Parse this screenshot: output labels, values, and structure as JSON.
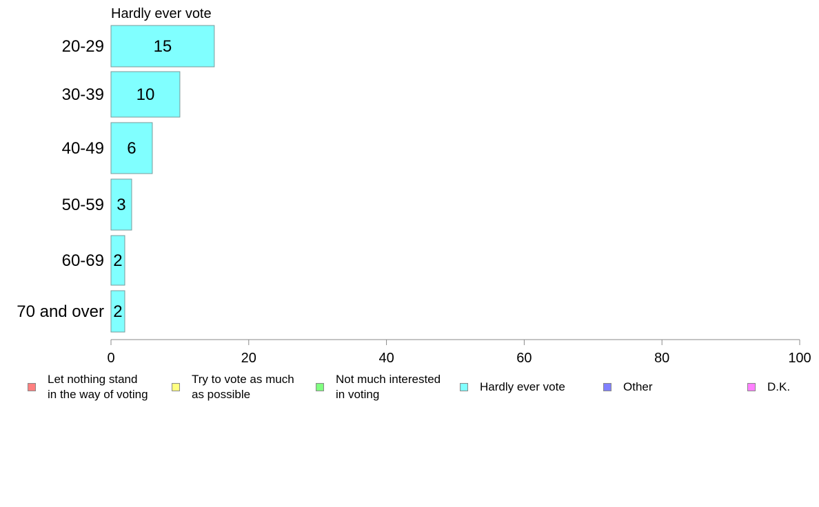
{
  "chart_data": {
    "type": "bar",
    "orientation": "horizontal",
    "title": "Hardly ever vote",
    "categories": [
      "20-29",
      "30-39",
      "40-49",
      "50-59",
      "60-69",
      "70 and over"
    ],
    "values": [
      15,
      10,
      6,
      3,
      2,
      2
    ],
    "data_labels": [
      "15",
      "10",
      "6",
      "3",
      "2",
      "2"
    ],
    "xlim": [
      0,
      100
    ],
    "xticks": [
      0,
      20,
      40,
      60,
      80,
      100
    ],
    "grid": false,
    "bar_color": "#80ffff",
    "bar_stroke": "#7a9a9a",
    "legend_position": "bottom",
    "legend": [
      {
        "label": "Let nothing stand\nin the way of voting",
        "color": "#ff8080"
      },
      {
        "label": "Try to vote as much\nas possible",
        "color": "#ffff80"
      },
      {
        "label": "Not much interested\nin voting",
        "color": "#80ff80"
      },
      {
        "label": "Hardly ever vote",
        "color": "#80ffff"
      },
      {
        "label": "Other",
        "color": "#8080ff"
      },
      {
        "label": "D.K.",
        "color": "#ff80ff"
      }
    ]
  }
}
